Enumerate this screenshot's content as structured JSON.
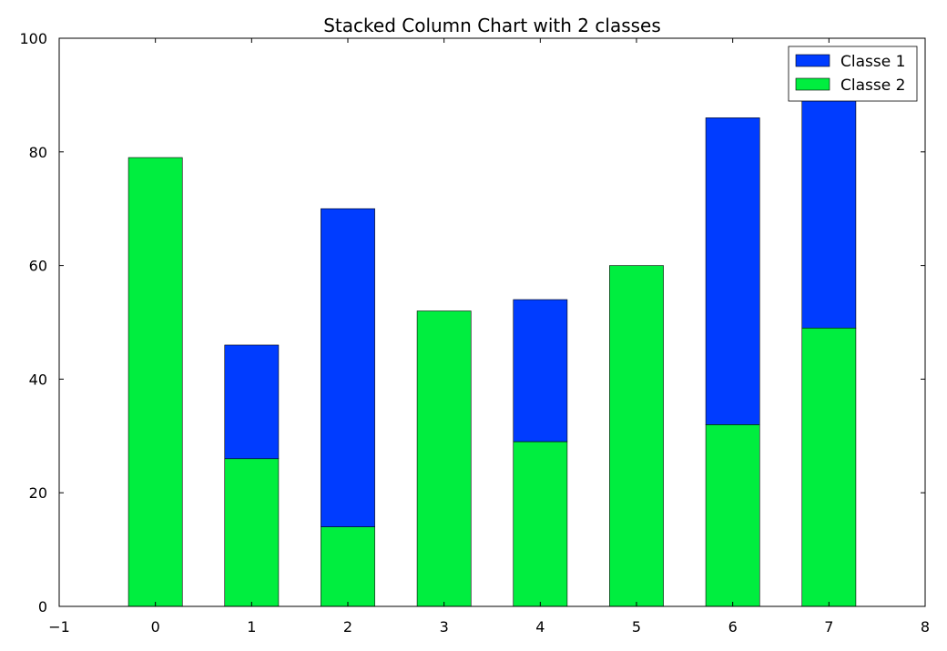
{
  "chart_data": {
    "type": "bar",
    "stacked": true,
    "title": "Stacked Column Chart with 2 classes",
    "xlabel": "",
    "ylabel": "",
    "x": [
      0,
      1,
      2,
      3,
      4,
      5,
      6,
      7
    ],
    "xlim": [
      -1,
      8
    ],
    "ylim": [
      0,
      100
    ],
    "xticks": [
      "−1",
      "0",
      "1",
      "2",
      "3",
      "4",
      "5",
      "6",
      "7",
      "8"
    ],
    "yticks": [
      "0",
      "20",
      "40",
      "60",
      "80",
      "100"
    ],
    "grid": false,
    "legend_position": "top-right",
    "series": [
      {
        "name": "Classe 2",
        "color": "#00ee3f",
        "values": [
          79,
          26,
          14,
          52,
          29,
          60,
          32,
          49
        ]
      },
      {
        "name": "Classe 1",
        "color": "#003cff",
        "values": [
          0,
          20,
          56,
          0,
          25,
          0,
          54,
          41
        ]
      }
    ],
    "legend_order": [
      "Classe 1",
      "Classe 2"
    ]
  }
}
